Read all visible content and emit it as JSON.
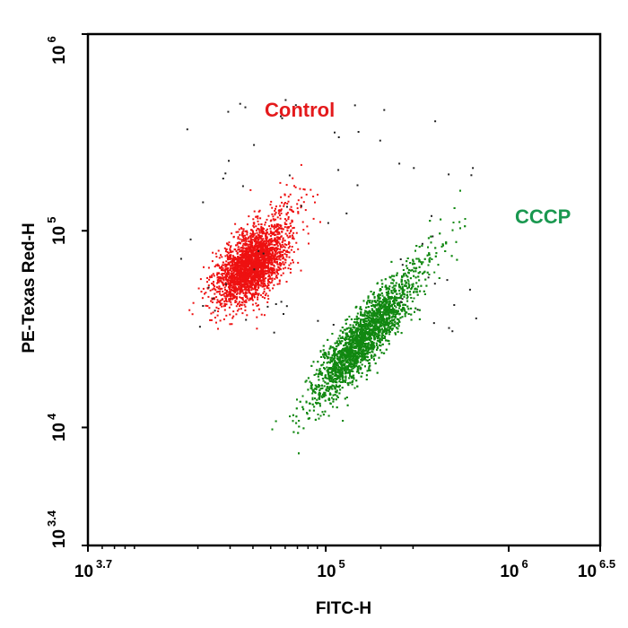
{
  "chart_data": {
    "type": "scatter",
    "xlabel": "FITC-H",
    "ylabel": "PE-Texas Red-H",
    "xscale": "log",
    "yscale": "log",
    "xlim": [
      5011.87,
      3162277.66
    ],
    "ylim": [
      2511.89,
      1000000
    ],
    "grid": false,
    "x_ticks": [
      {
        "base": "10",
        "exp": "3.7"
      },
      {
        "base": "10",
        "exp": "5"
      },
      {
        "base": "10",
        "exp": "6"
      },
      {
        "base": "10",
        "exp": "6.5"
      }
    ],
    "y_ticks": [
      {
        "base": "10",
        "exp": "3.4"
      },
      {
        "base": "10",
        "exp": "4"
      },
      {
        "base": "10",
        "exp": "5"
      },
      {
        "base": "10",
        "exp": "6"
      }
    ],
    "annotations": [
      {
        "text": "Control",
        "color": "#e41a1c"
      },
      {
        "text": "CCCP",
        "color": "#1a9850"
      }
    ],
    "series": [
      {
        "name": "Control",
        "color": "#ee1111",
        "center": [
          38000,
          66000
        ],
        "count": 2600
      },
      {
        "name": "CCCP",
        "color": "#118811",
        "center": [
          155000,
          28000
        ],
        "count": 4200
      }
    ]
  }
}
